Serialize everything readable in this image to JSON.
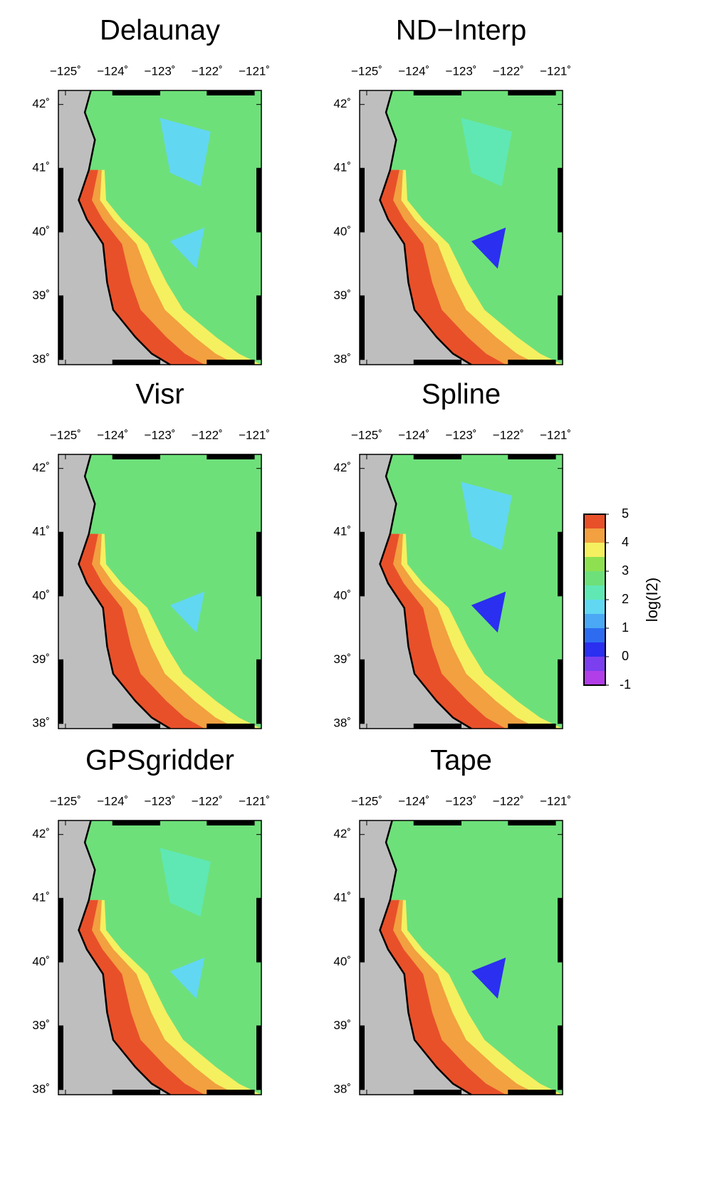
{
  "panels": [
    {
      "title": "Delaunay"
    },
    {
      "title": "ND−Interp"
    },
    {
      "title": "Visr"
    },
    {
      "title": "Spline"
    },
    {
      "title": "GPSgridder"
    },
    {
      "title": "Tape"
    }
  ],
  "xlim": [
    -125.15,
    -120.85
  ],
  "ylim": [
    37.92,
    42.22
  ],
  "lon_ticks": [
    {
      "value": -125,
      "label": "−125˚"
    },
    {
      "value": -124,
      "label": "−124˚"
    },
    {
      "value": -123,
      "label": "−123˚"
    },
    {
      "value": -122,
      "label": "−122˚"
    },
    {
      "value": -121,
      "label": "−121˚"
    }
  ],
  "lat_ticks": [
    {
      "value": 38,
      "label": "38˚"
    },
    {
      "value": 39,
      "label": "39˚"
    },
    {
      "value": 40,
      "label": "40˚"
    },
    {
      "value": 41,
      "label": "41˚"
    },
    {
      "value": 42,
      "label": "42˚"
    }
  ],
  "colorbar": {
    "label": "log(I2)",
    "range": [
      -1,
      5
    ],
    "ticks": [
      -1,
      0,
      1,
      2,
      3,
      4,
      5
    ],
    "colors": [
      "#b13ee8",
      "#7b3ff0",
      "#2a2ff0",
      "#2d6cf0",
      "#4aa8f4",
      "#62d7f2",
      "#5fe8b4",
      "#6ee07a",
      "#8ee050",
      "#f5f060",
      "#f2a040",
      "#e8502a"
    ]
  }
}
